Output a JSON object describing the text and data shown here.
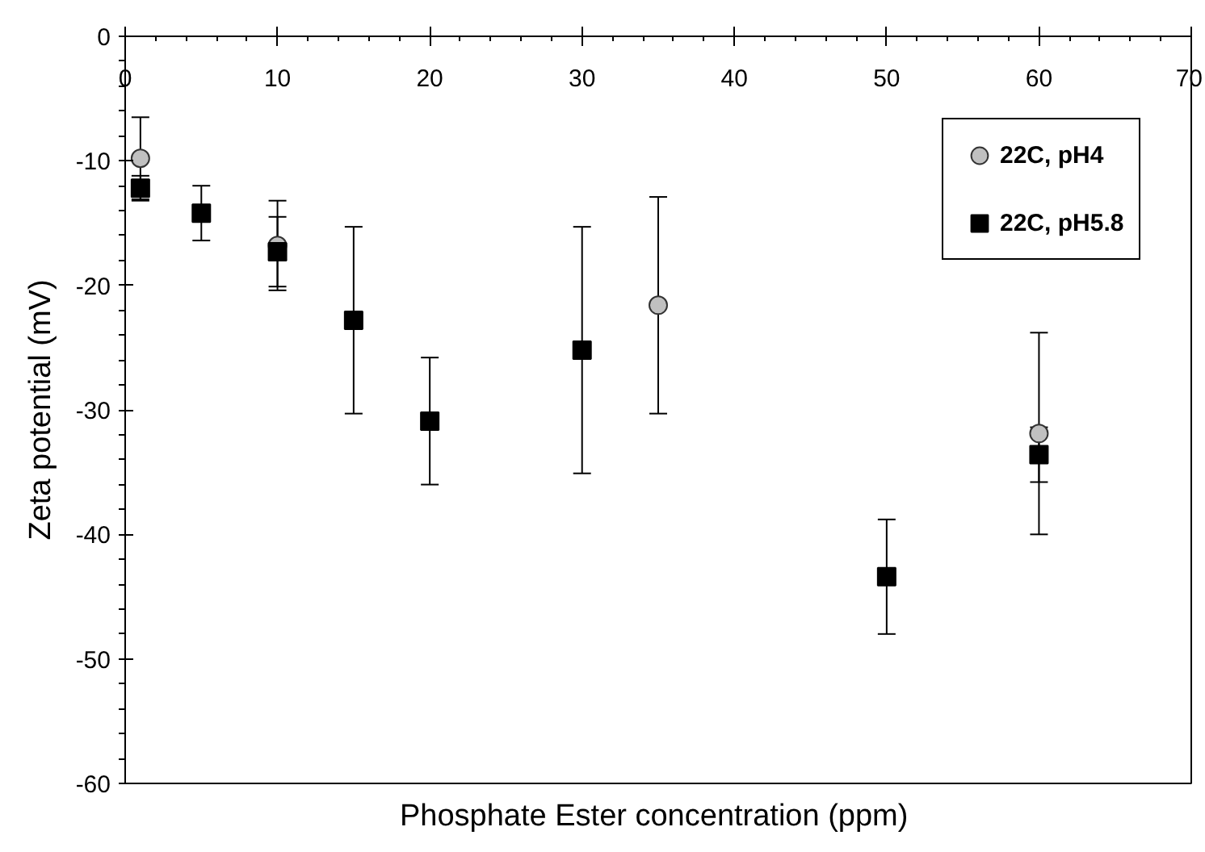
{
  "chart_data": {
    "type": "scatter",
    "xlabel": "Phosphate Ester concentration  (ppm)",
    "ylabel": "Zeta potential (mV)",
    "xlim": [
      0,
      70
    ],
    "xticks": [
      0,
      10,
      20,
      30,
      40,
      50,
      60,
      70
    ],
    "ylim": [
      -60,
      0
    ],
    "yticks": [
      -60,
      -50,
      -40,
      -30,
      -20,
      -10,
      0
    ],
    "legend": "top right",
    "series": [
      {
        "name": "22C, pH4",
        "color": "#c0c0c0",
        "marker": "circle",
        "x": [
          1,
          10,
          35,
          60
        ],
        "values": [
          -9.8,
          -16.8,
          -21.6,
          -31.9
        ],
        "errors": [
          3.3,
          3.6,
          8.7,
          8.1
        ]
      },
      {
        "name": "22C, pH5.8",
        "color": "#000000",
        "marker": "square",
        "x": [
          1,
          5,
          10,
          15,
          20,
          30,
          50,
          60
        ],
        "values": [
          -12.2,
          -14.2,
          -17.3,
          -22.8,
          -30.9,
          -25.2,
          -43.4,
          -33.6
        ],
        "errors": [
          1.0,
          2.2,
          2.8,
          7.5,
          5.1,
          9.9,
          4.6,
          2.2
        ]
      }
    ]
  }
}
